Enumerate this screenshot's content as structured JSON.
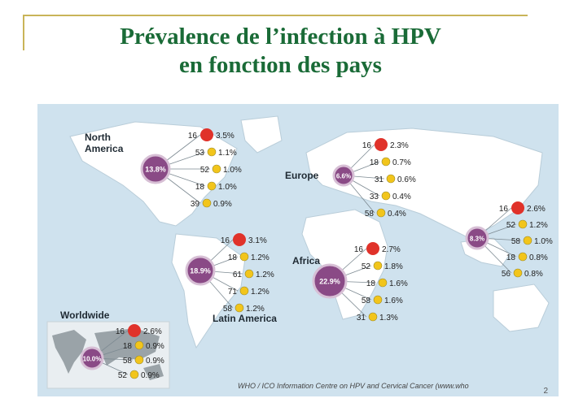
{
  "slide": {
    "title_line1": "Prévalence de l’infection à HPV",
    "title_line2": "en fonction des pays",
    "source": "WHO / ICO Information Centre on HPV and Cervical Cancer (www.who",
    "page_number": "2"
  },
  "colors": {
    "title": "#1a6b37",
    "hpv16": "#e0322a",
    "other_types": "#f2c51b",
    "region_bubble": "#8a4a86",
    "ocean": "#cfe2ee",
    "land": "#ffffff"
  },
  "chart_data": {
    "type": "scatter",
    "description_note": "",
    "regions": [
      {
        "name": "North America",
        "overall": "13.8%",
        "types": [
          {
            "type": "16",
            "value": "3.5%"
          },
          {
            "type": "53",
            "value": "1.1%"
          },
          {
            "type": "52",
            "value": "1.0%"
          },
          {
            "type": "18",
            "value": "1.0%"
          },
          {
            "type": "39",
            "value": "0.9%"
          }
        ]
      },
      {
        "name": "Europe",
        "overall": "6.6%",
        "types": [
          {
            "type": "16",
            "value": "2.3%"
          },
          {
            "type": "18",
            "value": "0.7%"
          },
          {
            "type": "31",
            "value": "0.6%"
          },
          {
            "type": "33",
            "value": "0.4%"
          },
          {
            "type": "58",
            "value": "0.4%"
          }
        ]
      },
      {
        "name": "",
        "overall": "8.3%",
        "types": [
          {
            "type": "16",
            "value": "2.6%"
          },
          {
            "type": "52",
            "value": "1.2%"
          },
          {
            "type": "58",
            "value": "1.0%"
          },
          {
            "type": "18",
            "value": "0.8%"
          },
          {
            "type": "56",
            "value": "0.8%"
          }
        ]
      },
      {
        "name": "Latin America",
        "overall": "18.9%",
        "types": [
          {
            "type": "16",
            "value": "3.1%"
          },
          {
            "type": "18",
            "value": "1.2%"
          },
          {
            "type": "61",
            "value": "1.2%"
          },
          {
            "type": "71",
            "value": "1.2%"
          },
          {
            "type": "58",
            "value": "1.2%"
          }
        ]
      },
      {
        "name": "Africa",
        "overall": "22.9%",
        "types": [
          {
            "type": "16",
            "value": "2.7%"
          },
          {
            "type": "52",
            "value": "1.8%"
          },
          {
            "type": "18",
            "value": "1.6%"
          },
          {
            "type": "58",
            "value": "1.6%"
          },
          {
            "type": "31",
            "value": "1.3%"
          }
        ]
      },
      {
        "name": "Worldwide",
        "overall": "10.0%",
        "types": [
          {
            "type": "16",
            "value": "2.6%"
          },
          {
            "type": "18",
            "value": "0.9%"
          },
          {
            "type": "58",
            "value": "0.9%"
          },
          {
            "type": "52",
            "value": "0.9%"
          }
        ]
      }
    ]
  }
}
